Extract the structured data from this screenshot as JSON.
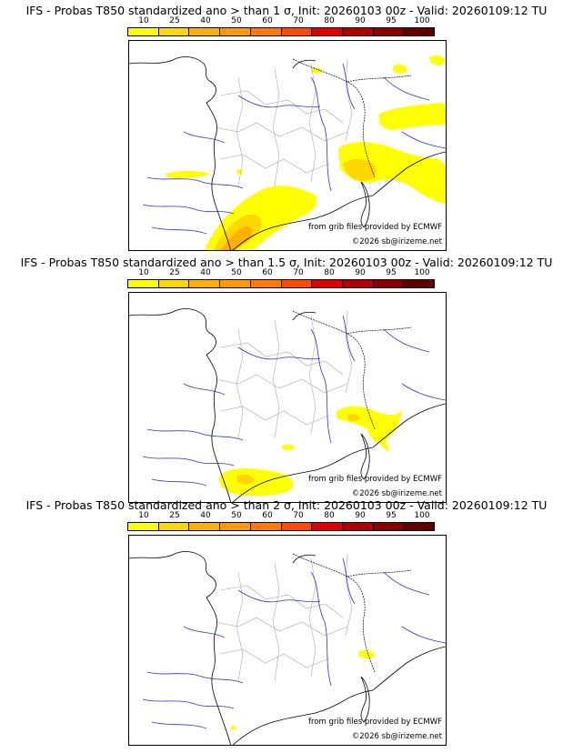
{
  "colorbar": {
    "labels": [
      "10",
      "25",
      "40",
      "50",
      "60",
      "70",
      "80",
      "90",
      "95",
      "100"
    ],
    "colors": [
      "#ffff00",
      "#ffd700",
      "#ffb000",
      "#ff9a00",
      "#ff7a00",
      "#ff4a00",
      "#e00000",
      "#b00000",
      "#8a0000",
      "#600000"
    ]
  },
  "panels": [
    {
      "title": "IFS - Probas T850  standardized ano > than 1 σ, Init: 20260103 00z - Valid: 20260109:12 TU",
      "credit_grib": "from grib files provided by ECMWF",
      "credit_copy": "©2026 sb@irizeme.net",
      "level": "1-sigma"
    },
    {
      "title": "IFS - Probas T850  standardized ano > than 1.5 σ, Init: 20260103 00z - Valid: 20260109:12 TU",
      "credit_grib": "from grib files provided by ECMWF",
      "credit_copy": "©2026 sb@irizeme.net",
      "level": "1.5-sigma"
    },
    {
      "title": "IFS - Probas T850  standardized ano > than 2 σ, Init: 20260103 00z - Valid: 20260109:12 TU",
      "credit_grib": "from grib files provided by ECMWF",
      "credit_copy": "©2026 sb@irizeme.net",
      "level": "2-sigma"
    }
  ]
}
